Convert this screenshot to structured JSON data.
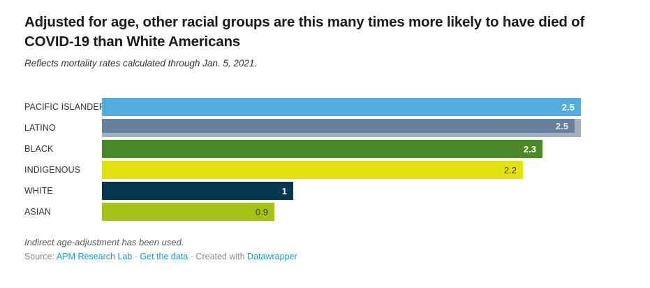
{
  "header": {
    "title": "Adjusted for age, other racial groups are this many times more likely to have died of COVID-19 than White Americans",
    "subtitle": "Reflects mortality rates calculated through Jan. 5, 2021."
  },
  "chart_data": {
    "type": "bar",
    "orientation": "horizontal",
    "title": "Adjusted for age, other racial groups are this many times more likely to have died of COVID-19 than White Americans",
    "subtitle": "Reflects mortality rates calculated through Jan. 5, 2021.",
    "xlabel": "",
    "ylabel": "",
    "xlim": [
      0,
      2.6
    ],
    "grid": false,
    "legend": false,
    "value_labels_inside_bars": true,
    "categories": [
      "PACIFIC ISLANDER",
      "LATINO",
      "BLACK",
      "INDIGENOUS",
      "WHITE",
      "ASIAN"
    ],
    "values": [
      2.5,
      2.5,
      2.3,
      2.2,
      1,
      0.9
    ],
    "bars": [
      {
        "label": "PACIFIC ISLANDER",
        "value": 2.5,
        "display": "2.5",
        "color": "#52ADDC",
        "value_color": "#FFFFFF",
        "value_bold": true,
        "two_tone": false
      },
      {
        "label": "LATINO",
        "value": 2.5,
        "display": "2.5",
        "color": "#68809F",
        "underlay_color": "#A6AFBF",
        "value_color": "#E4E7EC",
        "value_bold": true,
        "two_tone": true
      },
      {
        "label": "BLACK",
        "value": 2.3,
        "display": "2.3",
        "color": "#4A8928",
        "value_color": "#FFFFFF",
        "value_bold": true,
        "two_tone": false
      },
      {
        "label": "INDIGENOUS",
        "value": 2.2,
        "display": "2.2",
        "color": "#E2E00E",
        "value_color": "#3A3A3A",
        "value_bold": false,
        "two_tone": false
      },
      {
        "label": "WHITE",
        "value": 1,
        "display": "1",
        "color": "#05374F",
        "value_color": "#FFFFFF",
        "value_bold": true,
        "two_tone": false
      },
      {
        "label": "ASIAN",
        "value": 0.9,
        "display": "0.9",
        "color": "#A8C118",
        "value_color": "#3A3A3A",
        "value_bold": false,
        "two_tone": false
      }
    ]
  },
  "footer": {
    "note": "Indirect age-adjustment has been used.",
    "source_prefix": "Source:",
    "source_link": "APM Research Lab",
    "separator": "·",
    "data_link": "Get the data",
    "created_with": "Created with",
    "tool_link": "Datawrapper",
    "link_color": "#1E96C8"
  }
}
